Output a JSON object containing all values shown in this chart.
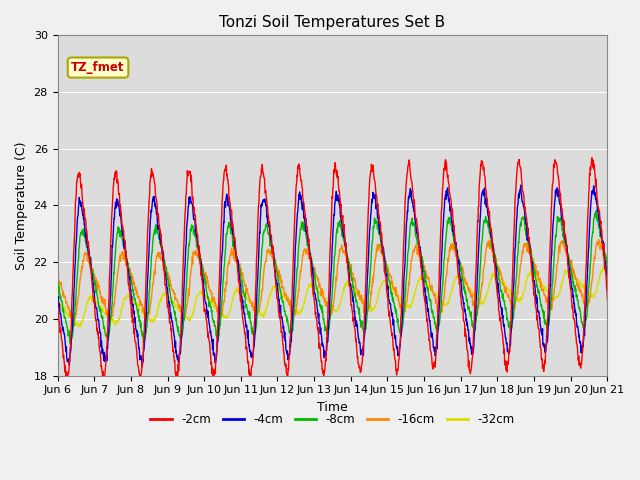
{
  "title": "Tonzi Soil Temperatures Set B",
  "xlabel": "Time",
  "ylabel": "Soil Temperature (C)",
  "ylim": [
    18,
    30
  ],
  "ytick_values": [
    18,
    20,
    22,
    24,
    26,
    28,
    30
  ],
  "ytick_labels": [
    "18",
    "20",
    "22",
    "24",
    "26",
    "28",
    "30"
  ],
  "xtick_labels": [
    "Jun 6",
    "Jun 7",
    "Jun 8",
    "Jun 9",
    "Jun 10",
    "Jun 11",
    "Jun 12",
    "Jun 13",
    "Jun 14",
    "Jun 15",
    "Jun 16",
    "Jun 17",
    "Jun 18",
    "Jun 19",
    "Jun 20",
    "Jun 21"
  ],
  "annotation_text": "TZ_fmet",
  "colors": {
    "-2cm": "#ff0000",
    "-4cm": "#0000dd",
    "-8cm": "#00bb00",
    "-16cm": "#ff8800",
    "-32cm": "#dddd00"
  },
  "legend_labels": [
    "-2cm",
    "-4cm",
    "-8cm",
    "-16cm",
    "-32cm"
  ],
  "title_fontsize": 11,
  "axis_label_fontsize": 9,
  "tick_fontsize": 8
}
